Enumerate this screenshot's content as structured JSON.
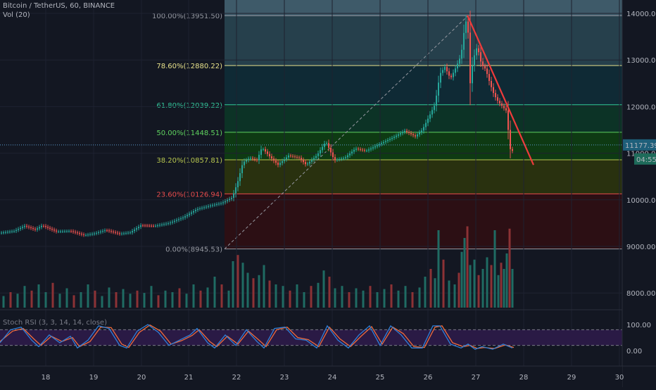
{
  "header": {
    "symbol": "Bitcoin / TetherUS, 60, BINANCE",
    "volume": "Vol (20)"
  },
  "chart_data": {
    "type": "candlestick",
    "y_ticks": [
      "14000.00",
      "13000.00",
      "12000.00",
      "11000.00",
      "10000.00",
      "9000.00",
      "8000.00"
    ],
    "y_tick_values": [
      14000,
      13000,
      12000,
      11000,
      10000,
      9000,
      8000
    ],
    "x_ticks": [
      "18",
      "19",
      "20",
      "21",
      "22",
      "23",
      "24",
      "25",
      "26",
      "27",
      "28",
      "29",
      "30"
    ],
    "price_range": [
      7700,
      14300
    ],
    "last_price": "11177.39",
    "countdown": "04:55",
    "fib_levels": [
      {
        "label": "100.00%(13951.50)",
        "value": 13951.5,
        "color": "#9598a1",
        "fill": "#3e5a69"
      },
      {
        "label": "78.60%(12880.22)",
        "value": 12880.22,
        "color": "#e6e08a",
        "fill": "#26404c"
      },
      {
        "label": "61.80%(12039.22)",
        "value": 12039.22,
        "color": "#33c59a",
        "fill": "#0f2a35"
      },
      {
        "label": "50.00%(11448.51)",
        "value": 11448.51,
        "color": "#5fd35f",
        "fill": "#0c3326"
      },
      {
        "label": "38.20%(10857.81)",
        "value": 10857.81,
        "color": "#b8c74f",
        "fill": "#0e3a13"
      },
      {
        "label": "23.60%(10126.94)",
        "value": 10126.94,
        "color": "#e84c4c",
        "fill": "#29310f"
      },
      {
        "label": "0.00%(8945.53)",
        "value": 8945.53,
        "color": "#9598a1",
        "fill": "#2c0f14"
      }
    ],
    "price_path": [
      [
        0,
        9290
      ],
      [
        20,
        9330
      ],
      [
        35,
        9440
      ],
      [
        50,
        9360
      ],
      [
        60,
        9450
      ],
      [
        80,
        9320
      ],
      [
        100,
        9330
      ],
      [
        120,
        9240
      ],
      [
        135,
        9280
      ],
      [
        150,
        9350
      ],
      [
        170,
        9270
      ],
      [
        185,
        9300
      ],
      [
        200,
        9450
      ],
      [
        220,
        9440
      ],
      [
        240,
        9500
      ],
      [
        260,
        9620
      ],
      [
        280,
        9800
      ],
      [
        300,
        9880
      ],
      [
        315,
        9930
      ],
      [
        330,
        10050
      ],
      [
        338,
        10400
      ],
      [
        345,
        10800
      ],
      [
        355,
        10900
      ],
      [
        365,
        10850
      ],
      [
        372,
        11120
      ],
      [
        385,
        10900
      ],
      [
        395,
        10750
      ],
      [
        410,
        10950
      ],
      [
        425,
        10900
      ],
      [
        435,
        10750
      ],
      [
        450,
        10950
      ],
      [
        463,
        11250
      ],
      [
        475,
        10850
      ],
      [
        490,
        10900
      ],
      [
        505,
        11100
      ],
      [
        520,
        11050
      ],
      [
        540,
        11200
      ],
      [
        560,
        11350
      ],
      [
        575,
        11480
      ],
      [
        590,
        11360
      ],
      [
        600,
        11500
      ],
      [
        610,
        11800
      ],
      [
        618,
        12050
      ],
      [
        625,
        12700
      ],
      [
        632,
        12850
      ],
      [
        640,
        12600
      ],
      [
        648,
        12850
      ],
      [
        655,
        13100
      ],
      [
        660,
        13700
      ],
      [
        664,
        13950
      ],
      [
        668,
        12500
      ],
      [
        672,
        13000
      ],
      [
        678,
        13300
      ],
      [
        684,
        12900
      ],
      [
        690,
        12800
      ],
      [
        696,
        12500
      ],
      [
        702,
        12250
      ],
      [
        708,
        12100
      ],
      [
        714,
        12000
      ],
      [
        720,
        11900
      ],
      [
        724,
        11100
      ],
      [
        728,
        11050
      ],
      [
        732,
        11177
      ]
    ],
    "volume_bars": [
      [
        5,
        0.15
      ],
      [
        15,
        0.2
      ],
      [
        25,
        0.18
      ],
      [
        35,
        0.28
      ],
      [
        45,
        0.22
      ],
      [
        55,
        0.3
      ],
      [
        65,
        0.2
      ],
      [
        75,
        0.32
      ],
      [
        85,
        0.18
      ],
      [
        95,
        0.25
      ],
      [
        105,
        0.16
      ],
      [
        115,
        0.2
      ],
      [
        125,
        0.3
      ],
      [
        135,
        0.22
      ],
      [
        145,
        0.15
      ],
      [
        155,
        0.26
      ],
      [
        165,
        0.2
      ],
      [
        175,
        0.24
      ],
      [
        185,
        0.18
      ],
      [
        195,
        0.22
      ],
      [
        205,
        0.19
      ],
      [
        215,
        0.28
      ],
      [
        225,
        0.16
      ],
      [
        235,
        0.22
      ],
      [
        245,
        0.2
      ],
      [
        255,
        0.25
      ],
      [
        265,
        0.18
      ],
      [
        275,
        0.3
      ],
      [
        285,
        0.22
      ],
      [
        295,
        0.26
      ],
      [
        305,
        0.4
      ],
      [
        315,
        0.3
      ],
      [
        325,
        0.22
      ],
      [
        331,
        0.6
      ],
      [
        338,
        0.68
      ],
      [
        345,
        0.58
      ],
      [
        352,
        0.45
      ],
      [
        360,
        0.38
      ],
      [
        368,
        0.42
      ],
      [
        375,
        0.55
      ],
      [
        383,
        0.35
      ],
      [
        392,
        0.3
      ],
      [
        402,
        0.28
      ],
      [
        412,
        0.22
      ],
      [
        422,
        0.3
      ],
      [
        432,
        0.2
      ],
      [
        442,
        0.28
      ],
      [
        452,
        0.32
      ],
      [
        460,
        0.48
      ],
      [
        468,
        0.4
      ],
      [
        476,
        0.25
      ],
      [
        486,
        0.28
      ],
      [
        496,
        0.2
      ],
      [
        506,
        0.25
      ],
      [
        516,
        0.22
      ],
      [
        526,
        0.28
      ],
      [
        536,
        0.2
      ],
      [
        546,
        0.24
      ],
      [
        556,
        0.3
      ],
      [
        566,
        0.22
      ],
      [
        576,
        0.28
      ],
      [
        586,
        0.2
      ],
      [
        596,
        0.26
      ],
      [
        604,
        0.4
      ],
      [
        612,
        0.5
      ],
      [
        618,
        0.38
      ],
      [
        623,
        1.0
      ],
      [
        630,
        0.62
      ],
      [
        638,
        0.35
      ],
      [
        646,
        0.3
      ],
      [
        652,
        0.45
      ],
      [
        656,
        0.72
      ],
      [
        660,
        0.9
      ],
      [
        664,
        1.05
      ],
      [
        668,
        0.55
      ],
      [
        674,
        0.62
      ],
      [
        680,
        0.42
      ],
      [
        686,
        0.5
      ],
      [
        692,
        0.65
      ],
      [
        698,
        0.55
      ],
      [
        703,
        1.0
      ],
      [
        708,
        0.42
      ],
      [
        712,
        0.58
      ],
      [
        716,
        0.5
      ],
      [
        720,
        0.7
      ],
      [
        724,
        1.02
      ],
      [
        728,
        0.5
      ]
    ],
    "stoch_ticks": [
      "100.00",
      "0.00"
    ],
    "stoch_label": "Stoch RSI (3, 3, 14, 14, close)",
    "stoch_k": [
      [
        0,
        30
      ],
      [
        15,
        80
      ],
      [
        30,
        90
      ],
      [
        45,
        40
      ],
      [
        55,
        15
      ],
      [
        70,
        60
      ],
      [
        85,
        30
      ],
      [
        100,
        55
      ],
      [
        110,
        10
      ],
      [
        125,
        40
      ],
      [
        140,
        95
      ],
      [
        155,
        85
      ],
      [
        170,
        20
      ],
      [
        180,
        10
      ],
      [
        195,
        75
      ],
      [
        210,
        100
      ],
      [
        225,
        70
      ],
      [
        240,
        20
      ],
      [
        255,
        40
      ],
      [
        270,
        60
      ],
      [
        280,
        85
      ],
      [
        295,
        30
      ],
      [
        305,
        10
      ],
      [
        320,
        60
      ],
      [
        335,
        20
      ],
      [
        350,
        80
      ],
      [
        365,
        35
      ],
      [
        375,
        10
      ],
      [
        390,
        85
      ],
      [
        405,
        90
      ],
      [
        420,
        45
      ],
      [
        435,
        40
      ],
      [
        450,
        10
      ],
      [
        465,
        95
      ],
      [
        480,
        40
      ],
      [
        495,
        10
      ],
      [
        510,
        60
      ],
      [
        525,
        95
      ],
      [
        540,
        20
      ],
      [
        555,
        95
      ],
      [
        570,
        60
      ],
      [
        585,
        10
      ],
      [
        600,
        10
      ],
      [
        615,
        95
      ],
      [
        625,
        95
      ],
      [
        640,
        25
      ],
      [
        655,
        10
      ],
      [
        665,
        25
      ],
      [
        675,
        5
      ],
      [
        685,
        15
      ],
      [
        700,
        5
      ],
      [
        715,
        25
      ],
      [
        728,
        10
      ]
    ],
    "stoch_d": [
      [
        0,
        35
      ],
      [
        18,
        75
      ],
      [
        33,
        85
      ],
      [
        48,
        45
      ],
      [
        58,
        20
      ],
      [
        73,
        55
      ],
      [
        88,
        35
      ],
      [
        103,
        50
      ],
      [
        113,
        15
      ],
      [
        128,
        35
      ],
      [
        143,
        90
      ],
      [
        158,
        88
      ],
      [
        173,
        25
      ],
      [
        183,
        12
      ],
      [
        198,
        70
      ],
      [
        213,
        98
      ],
      [
        228,
        75
      ],
      [
        243,
        25
      ],
      [
        258,
        38
      ],
      [
        273,
        58
      ],
      [
        283,
        80
      ],
      [
        298,
        35
      ],
      [
        308,
        15
      ],
      [
        323,
        55
      ],
      [
        338,
        25
      ],
      [
        353,
        75
      ],
      [
        368,
        40
      ],
      [
        378,
        15
      ],
      [
        393,
        80
      ],
      [
        408,
        90
      ],
      [
        423,
        50
      ],
      [
        438,
        42
      ],
      [
        453,
        15
      ],
      [
        468,
        90
      ],
      [
        483,
        45
      ],
      [
        498,
        15
      ],
      [
        513,
        55
      ],
      [
        528,
        92
      ],
      [
        543,
        25
      ],
      [
        558,
        90
      ],
      [
        573,
        65
      ],
      [
        588,
        15
      ],
      [
        603,
        12
      ],
      [
        618,
        90
      ],
      [
        628,
        95
      ],
      [
        643,
        30
      ],
      [
        658,
        15
      ],
      [
        668,
        20
      ],
      [
        678,
        8
      ],
      [
        688,
        12
      ],
      [
        703,
        8
      ],
      [
        718,
        22
      ],
      [
        730,
        12
      ]
    ]
  }
}
